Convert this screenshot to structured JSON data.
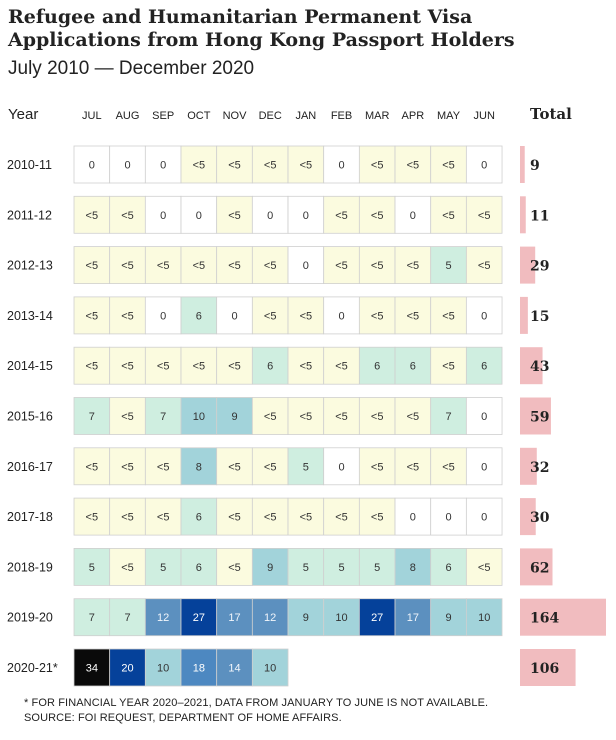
{
  "chart_data": {
    "type": "heatmap",
    "title": "Refugee and Humanitarian Permanent Visa Applications from Hong Kong Passport Holders",
    "subtitle": "July 2010 — December 2020",
    "row_header": "Year",
    "total_header": "Total",
    "columns": [
      "JUL",
      "AUG",
      "SEP",
      "OCT",
      "NOV",
      "DEC",
      "JAN",
      "FEB",
      "MAR",
      "APR",
      "MAY",
      "JUN"
    ],
    "rows": [
      {
        "year": "2010-11",
        "cells": [
          "0",
          "0",
          "0",
          "<5",
          "<5",
          "<5",
          "<5",
          "0",
          "<5",
          "<5",
          "<5",
          "0"
        ],
        "total": 9
      },
      {
        "year": "2011-12",
        "cells": [
          "<5",
          "<5",
          "0",
          "0",
          "<5",
          "0",
          "0",
          "<5",
          "<5",
          "0",
          "<5",
          "<5"
        ],
        "total": 11
      },
      {
        "year": "2012-13",
        "cells": [
          "<5",
          "<5",
          "<5",
          "<5",
          "<5",
          "<5",
          "0",
          "<5",
          "<5",
          "<5",
          "5",
          "<5"
        ],
        "total": 29
      },
      {
        "year": "2013-14",
        "cells": [
          "<5",
          "<5",
          "0",
          "6",
          "0",
          "<5",
          "<5",
          "0",
          "<5",
          "<5",
          "<5",
          "0"
        ],
        "total": 15
      },
      {
        "year": "2014-15",
        "cells": [
          "<5",
          "<5",
          "<5",
          "<5",
          "<5",
          "6",
          "<5",
          "<5",
          "6",
          "6",
          "<5",
          "6"
        ],
        "total": 43
      },
      {
        "year": "2015-16",
        "cells": [
          "7",
          "<5",
          "7",
          "10",
          "9",
          "<5",
          "<5",
          "<5",
          "<5",
          "<5",
          "7",
          "0"
        ],
        "total": 59
      },
      {
        "year": "2016-17",
        "cells": [
          "<5",
          "<5",
          "<5",
          "8",
          "<5",
          "<5",
          "5",
          "0",
          "<5",
          "<5",
          "<5",
          "0"
        ],
        "total": 32
      },
      {
        "year": "2017-18",
        "cells": [
          "<5",
          "<5",
          "<5",
          "6",
          "<5",
          "<5",
          "<5",
          "<5",
          "<5",
          "0",
          "0",
          "0"
        ],
        "total": 30
      },
      {
        "year": "2018-19",
        "cells": [
          "5",
          "<5",
          "5",
          "6",
          "<5",
          "9",
          "5",
          "5",
          "5",
          "8",
          "6",
          "<5"
        ],
        "total": 62
      },
      {
        "year": "2019-20",
        "cells": [
          "7",
          "7",
          "12",
          "27",
          "17",
          "12",
          "9",
          "10",
          "27",
          "17",
          "9",
          "10"
        ],
        "total": 164
      },
      {
        "year": "2020-21*",
        "cells": [
          "34",
          "20",
          "10",
          "18",
          "14",
          "10"
        ],
        "total": 106
      }
    ],
    "total_max": 164
  },
  "colors": {
    "zero": "#ffffff",
    "under5": "#fbfbdf",
    "5-7": "#cfeee0",
    "8-11": "#a2d3da",
    "12-17": "#5c90bf",
    "18-19": "#4d88c1",
    "20-29": "#05419a",
    "30+": "#0a0a0a",
    "total_bar": "#f1bcbf",
    "cell_border": "#cfcfcf"
  },
  "footnote": {
    "line1": "* FOR FINANCIAL YEAR 2020–2021, DATA FROM JANUARY TO JUNE IS NOT AVAILABLE.",
    "line2": "SOURCE: FOI REQUEST, DEPARTMENT OF HOME AFFAIRS."
  }
}
